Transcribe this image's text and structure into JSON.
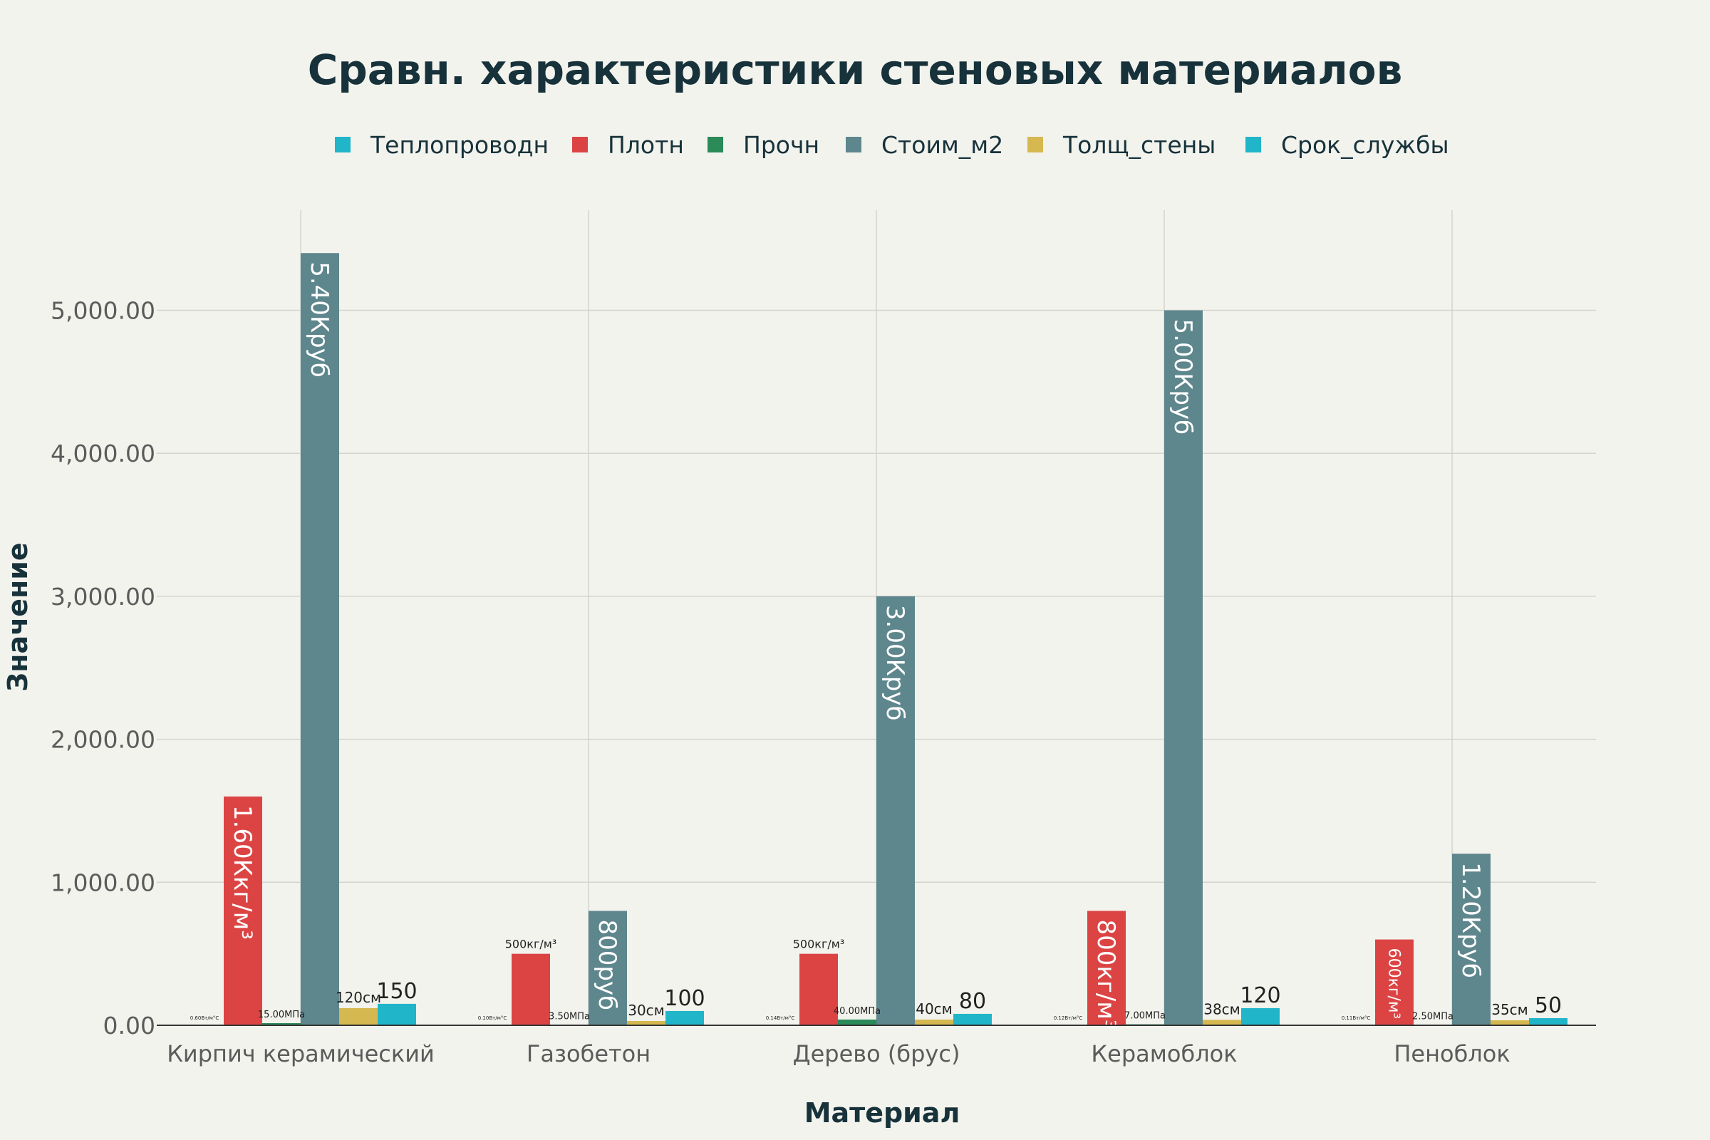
{
  "chart_data": {
    "type": "bar",
    "title": "Сравн. характеристики стеновых материалов",
    "xlabel": "Материал",
    "ylabel": "Значение",
    "ylim": [
      0,
      5700
    ],
    "yticks": [
      0,
      1000,
      2000,
      3000,
      4000,
      5000
    ],
    "ytick_labels": [
      "0.00",
      "1,000.00",
      "2,000.00",
      "3,000.00",
      "4,000.00",
      "5,000.00"
    ],
    "grid": true,
    "legend_position": "top",
    "categories": [
      "Кирпич керамический",
      "Газобетон",
      "Дерево (брус)",
      "Керамоблок",
      "Пеноблок"
    ],
    "series": [
      {
        "name": "Теплопроводн",
        "color": "#21b5c9",
        "values": [
          0.6,
          0.1,
          0.14,
          0.12,
          0.11
        ],
        "labels": [
          "0.60Вт/м°С",
          "0.10Вт/м°С",
          "0.14Вт/м°С",
          "0.12Вт/м°С",
          "0.11Вт/м°С"
        ]
      },
      {
        "name": "Плотн",
        "color": "#dc4444",
        "values": [
          1600,
          500,
          500,
          800,
          600
        ],
        "labels": [
          "1.60Ккг/м³",
          "500кг/м³",
          "500кг/м³",
          "800кг/м³",
          "600кг/м³"
        ]
      },
      {
        "name": "Прочн",
        "color": "#2a8a58",
        "values": [
          15,
          3.5,
          40,
          7,
          2.5
        ],
        "labels": [
          "15.00МПа",
          "3.50МПа",
          "40.00МПа",
          "7.00МПа",
          "2.50МПа"
        ]
      },
      {
        "name": "Стоим_м2",
        "color": "#5e868d",
        "values": [
          5400,
          800,
          3000,
          5000,
          1200
        ],
        "labels": [
          "5.40Круб",
          "800руб",
          "3.00Круб",
          "5.00Круб",
          "1.20Круб"
        ]
      },
      {
        "name": "Толщ_стены",
        "color": "#d5b84f",
        "values": [
          120,
          30,
          40,
          38,
          35
        ],
        "labels": [
          "120см",
          "30см",
          "40см",
          "38см",
          "35см"
        ]
      },
      {
        "name": "Срок_службы",
        "color": "#21b5c9",
        "values": [
          150,
          100,
          80,
          120,
          50
        ],
        "labels": [
          "150",
          "100",
          "80",
          "120",
          "50"
        ]
      }
    ]
  }
}
